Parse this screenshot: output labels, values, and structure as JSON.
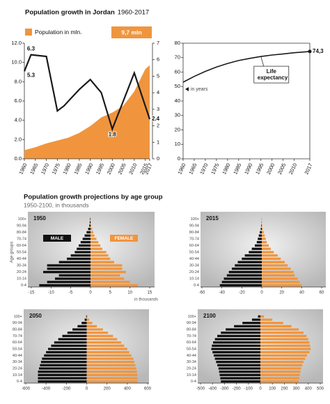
{
  "headings": {
    "title": "Population growth projections by age group",
    "subtitle": "1950-2100, in thousands"
  },
  "chart_data": [
    {
      "type": "area-line",
      "title": "Population growth in Jordan",
      "subtitle": "1960-2017",
      "badge": "9,7 mln",
      "xlim": [
        1960,
        2017
      ],
      "xticks": [
        1960,
        1965,
        1970,
        1975,
        1980,
        1985,
        1990,
        1995,
        2000,
        2005,
        2010,
        2015,
        2017
      ],
      "ylim": [
        0,
        12
      ],
      "yticks": [
        {
          "value": 0,
          "label": "0.0"
        },
        {
          "value": 2,
          "label": "2.0"
        },
        {
          "value": 4,
          "label": "4.0"
        },
        {
          "value": 6,
          "label": "6.0"
        },
        {
          "value": 8,
          "label": "8.0"
        },
        {
          "value": 10,
          "label": "10.0"
        },
        {
          "value": 12,
          "label": "12.0"
        }
      ],
      "y2lim": [
        0,
        7
      ],
      "y2ticks": [
        0,
        1,
        2,
        3,
        4,
        5,
        6,
        7
      ],
      "series": [
        {
          "name": "Population in mln.",
          "type": "area",
          "color": "#f0953e",
          "x": [
            1960,
            1965,
            1970,
            1975,
            1980,
            1985,
            1990,
            1995,
            2000,
            2005,
            2010,
            2015,
            2017
          ],
          "values": [
            0.9,
            1.2,
            1.6,
            1.9,
            2.2,
            2.7,
            3.4,
            4.3,
            4.8,
            5.5,
            7.0,
            9.3,
            9.7
          ]
        },
        {
          "type": "line",
          "axis": "y2",
          "color": "#1a1a1a",
          "x": [
            1960,
            1963,
            1970,
            1975,
            1978,
            1985,
            1990,
            1995,
            2000,
            2005,
            2010,
            2017
          ],
          "values": [
            5.3,
            6.3,
            6.2,
            2.9,
            3.2,
            4.2,
            4.8,
            4.0,
            1.8,
            3.5,
            5.2,
            2.4
          ]
        }
      ]
    },
    {
      "type": "line",
      "y_label": "in years",
      "xlim": [
        1960,
        2017
      ],
      "xticks": [
        1960,
        1965,
        1970,
        1975,
        1980,
        1985,
        1990,
        1995,
        2000,
        2005,
        2010,
        2017
      ],
      "ylim": [
        0,
        80
      ],
      "yticks": [
        0,
        10,
        20,
        30,
        40,
        50,
        60,
        70,
        80
      ],
      "series": [
        {
          "name": "Life expectancy",
          "color": "#1a1a1a",
          "x": [
            1960,
            1965,
            1970,
            1975,
            1980,
            1985,
            1990,
            1995,
            2000,
            2005,
            2010,
            2015,
            2017
          ],
          "values": [
            53,
            57,
            60.5,
            63.5,
            66,
            68,
            69.5,
            70.8,
            71.8,
            72.6,
            73.4,
            74.0,
            74.3
          ],
          "value_labels": [
            null,
            null,
            null,
            null,
            null,
            null,
            null,
            null,
            null,
            null,
            null,
            null,
            "74,3"
          ]
        }
      ]
    },
    {
      "type": "pyramid",
      "label": "1950",
      "x_label": "in thousands",
      "y_label": "Age groups",
      "categories": [
        "0-4",
        null,
        "10-14",
        null,
        "20-24",
        null,
        "30-34",
        null,
        "40-44",
        null,
        "50-54",
        null,
        "60-64",
        null,
        "70-74",
        null,
        "80-84",
        null,
        "90-94",
        null,
        "100+"
      ],
      "xlim": [
        -15,
        15
      ],
      "xticks": [
        -15,
        -10,
        -5,
        0,
        5,
        10,
        15
      ],
      "series": [
        {
          "name": "MALE",
          "color": "#111111",
          "values": [
            -13,
            -11,
            -9,
            -8,
            -12,
            -11,
            -11,
            -8,
            -6,
            -5,
            -4,
            -3.5,
            -3,
            -2.5,
            -2,
            -1.5,
            -1,
            -0.6,
            -0.3,
            -0.2,
            -0.1
          ]
        },
        {
          "name": "FEMALE",
          "color": "#f0953e",
          "values": [
            12,
            10,
            8.5,
            7.5,
            9,
            8,
            8,
            6,
            5,
            4.5,
            4,
            3,
            2.5,
            2,
            1.5,
            1,
            0.7,
            0.4,
            0.2,
            0.1,
            0.05
          ]
        }
      ]
    },
    {
      "type": "pyramid",
      "label": "2015",
      "categories": [
        "0-4",
        null,
        "10-14",
        null,
        "20-24",
        null,
        "30-34",
        null,
        "40-44",
        null,
        "50-54",
        null,
        "60-64",
        null,
        "70-74",
        null,
        "80-84",
        null,
        "90-94",
        null,
        "100+"
      ],
      "xlim": [
        -60,
        60
      ],
      "xticks": [
        -60,
        -40,
        -20,
        0,
        20,
        40,
        60
      ],
      "series": [
        {
          "color": "#111111",
          "values": [
            -42,
            -40,
            -38,
            -35,
            -33,
            -30,
            -27,
            -24,
            -20,
            -17,
            -13,
            -10,
            -7,
            -5,
            -4,
            -3,
            -2,
            -1,
            -0.5,
            -0.2,
            -0.1
          ]
        },
        {
          "color": "#f0953e",
          "values": [
            40,
            38,
            36,
            33,
            32,
            29,
            26,
            23,
            19,
            16,
            12,
            9,
            7,
            5,
            4,
            3,
            2,
            1,
            0.5,
            0.2,
            0.1
          ]
        }
      ]
    },
    {
      "type": "pyramid",
      "label": "2050",
      "categories": [
        "0-4",
        null,
        "10-14",
        null,
        "20-24",
        null,
        "30-34",
        null,
        "40-44",
        null,
        "50-54",
        null,
        "60-64",
        null,
        "70-74",
        null,
        "80-84",
        null,
        "90-94",
        null,
        "100+"
      ],
      "xlim": [
        -600,
        600
      ],
      "xticks": [
        -600,
        -400,
        -200,
        0,
        200,
        400,
        600
      ],
      "series": [
        {
          "color": "#111111",
          "values": [
            -480,
            -480,
            -480,
            -480,
            -470,
            -460,
            -450,
            -440,
            -420,
            -400,
            -380,
            -350,
            -320,
            -280,
            -240,
            -190,
            -140,
            -90,
            -50,
            -20,
            -5
          ]
        },
        {
          "color": "#f0953e",
          "values": [
            500,
            500,
            500,
            495,
            490,
            480,
            470,
            460,
            440,
            420,
            400,
            370,
            340,
            300,
            260,
            210,
            160,
            100,
            55,
            25,
            6
          ]
        }
      ]
    },
    {
      "type": "pyramid",
      "label": "2100",
      "categories": [
        "0-4",
        null,
        "10-14",
        null,
        "20-24",
        null,
        "30-34",
        null,
        "40-44",
        null,
        "50-54",
        null,
        "60-64",
        null,
        "70-74",
        null,
        "80-84",
        null,
        "90-94",
        null,
        "100+"
      ],
      "xlim": [
        -500,
        500
      ],
      "xticks": [
        -500,
        -400,
        -300,
        -200,
        -100,
        0,
        100,
        200,
        300,
        400,
        500
      ],
      "series": [
        {
          "color": "#111111",
          "values": [
            -330,
            -335,
            -340,
            -345,
            -350,
            -360,
            -370,
            -380,
            -390,
            -400,
            -410,
            -405,
            -395,
            -380,
            -360,
            -330,
            -290,
            -220,
            -150,
            -70,
            -20
          ]
        },
        {
          "color": "#f0953e",
          "values": [
            320,
            325,
            330,
            335,
            340,
            350,
            360,
            375,
            390,
            410,
            420,
            415,
            410,
            400,
            385,
            360,
            320,
            260,
            190,
            100,
            30
          ]
        }
      ]
    }
  ]
}
